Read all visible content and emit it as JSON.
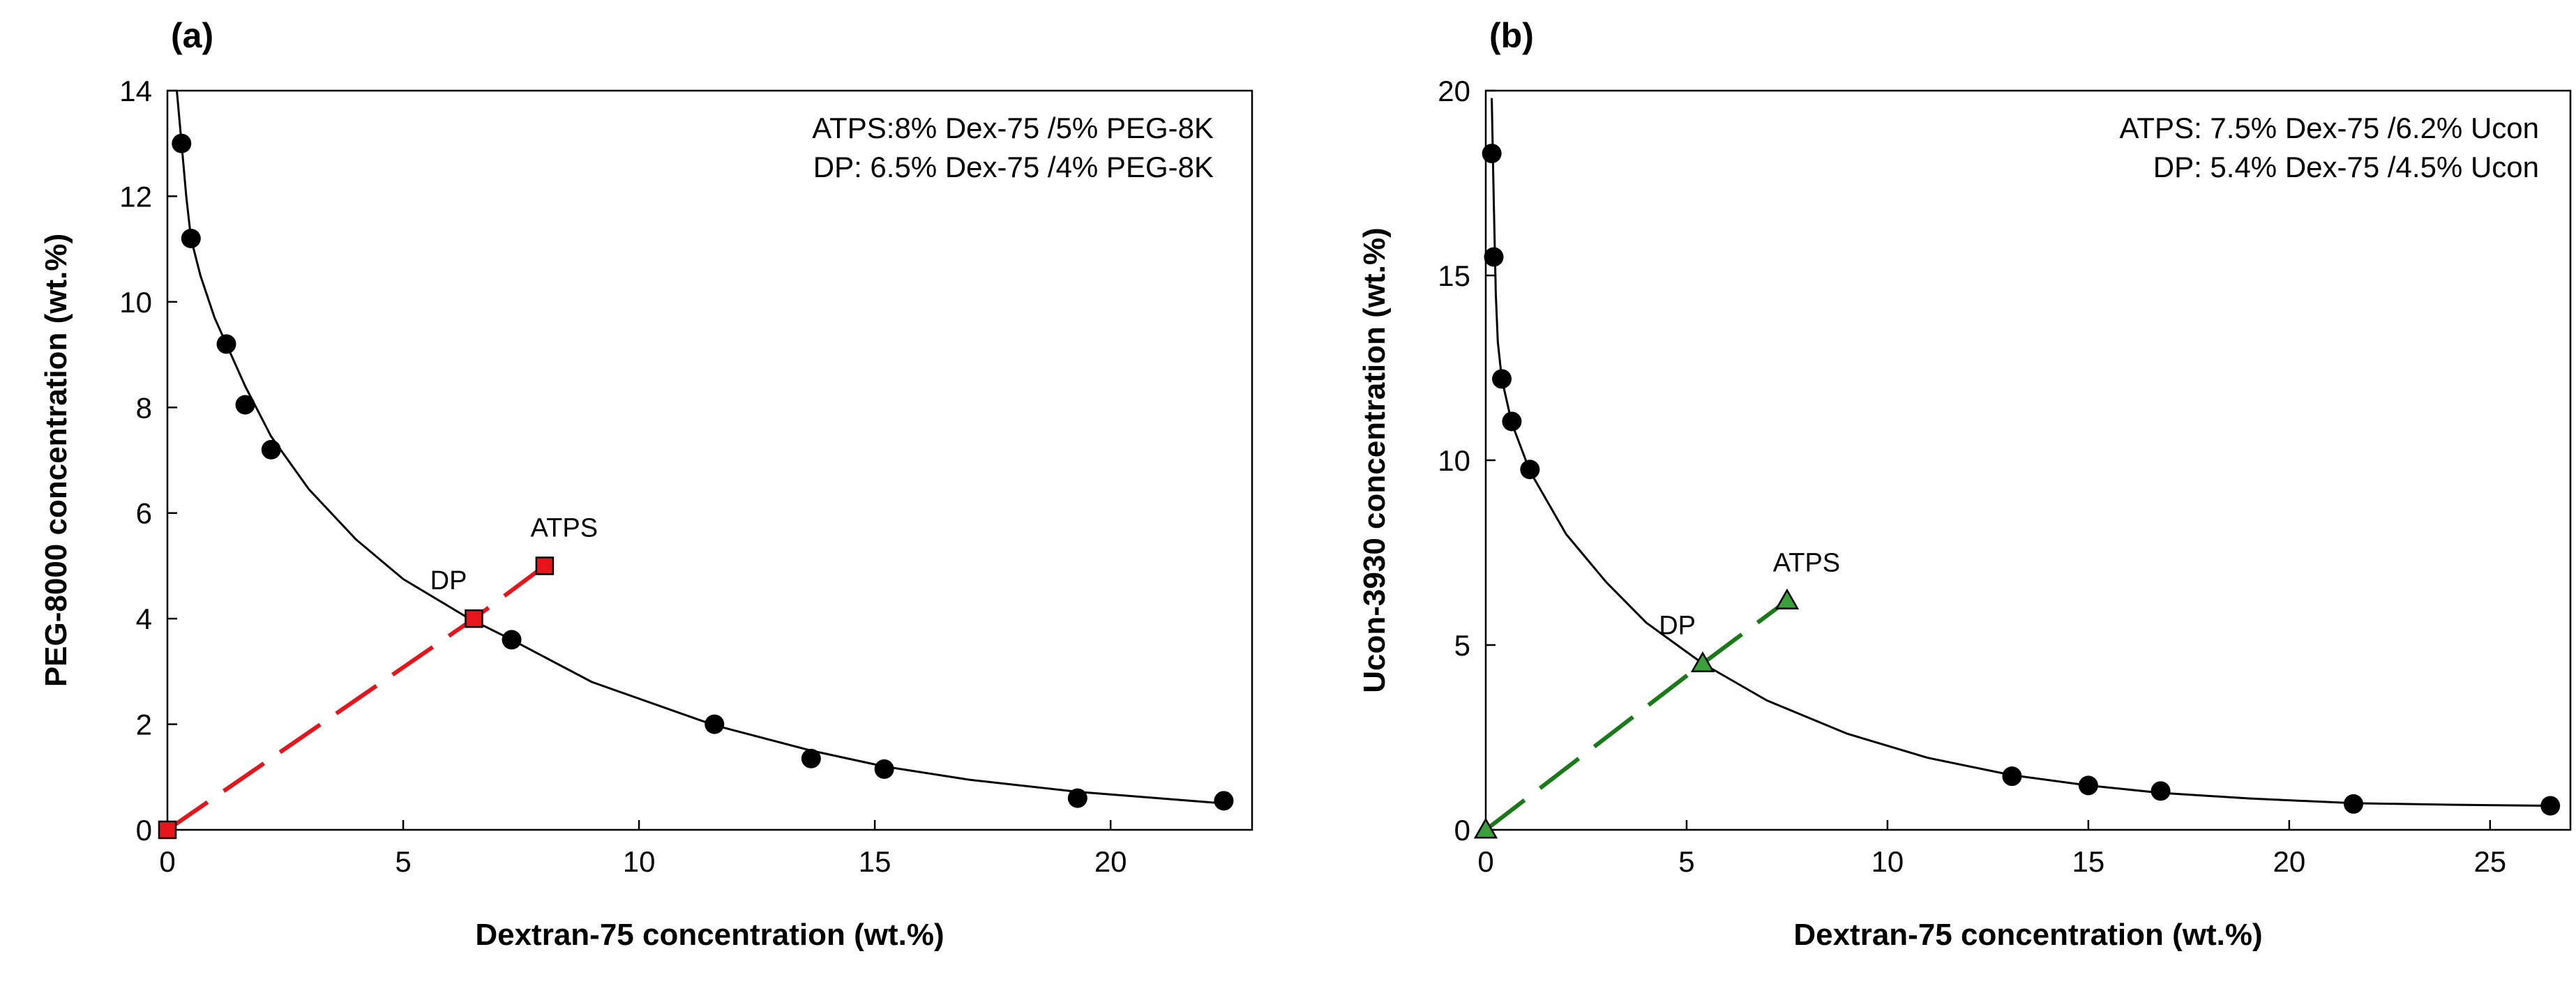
{
  "chart_data": [
    {
      "type": "scatter",
      "panel_label": "(a)",
      "xlabel": "Dextran-75 concentration (wt.%)",
      "ylabel": "PEG-8000 concentration (wt.%)",
      "xlim": [
        0,
        23
      ],
      "ylim": [
        0,
        14
      ],
      "xticks": [
        0,
        5,
        10,
        15,
        20
      ],
      "yticks": [
        0,
        2,
        4,
        6,
        8,
        10,
        12,
        14
      ],
      "annotations": [
        "ATPS:8% Dex-75 /5% PEG-8K",
        "DP: 6.5% Dex-75 /4% PEG-8K"
      ],
      "binodal_points": {
        "x": [
          0.3,
          0.5,
          1.25,
          1.65,
          2.2,
          7.3,
          11.6,
          13.65,
          15.2,
          19.3,
          22.4
        ],
        "y": [
          13.0,
          11.2,
          9.2,
          8.05,
          7.2,
          3.6,
          2.0,
          1.35,
          1.15,
          0.6,
          0.55
        ]
      },
      "binodal_curve": {
        "x": [
          0.2,
          0.25,
          0.3,
          0.4,
          0.5,
          0.7,
          1.0,
          1.25,
          1.65,
          2.2,
          3.0,
          4.0,
          5.0,
          6.4,
          7.3,
          9.0,
          11.6,
          13.65,
          15.2,
          17.0,
          19.3,
          21.0,
          22.4
        ],
        "y": [
          14.0,
          13.5,
          13.0,
          12.0,
          11.2,
          10.5,
          9.7,
          9.2,
          8.4,
          7.45,
          6.45,
          5.5,
          4.75,
          4.0,
          3.6,
          2.8,
          1.98,
          1.5,
          1.2,
          0.95,
          0.72,
          0.6,
          0.5
        ]
      },
      "tie_line": {
        "x": [
          0,
          6.5,
          8
        ],
        "y": [
          0,
          4,
          5
        ],
        "color": "#e8141b"
      },
      "marker_color": "#e8141b",
      "labeled_points": [
        {
          "label": "DP",
          "x": 6.5,
          "y": 4
        },
        {
          "label": "ATPS",
          "x": 8,
          "y": 5
        }
      ]
    },
    {
      "type": "scatter",
      "panel_label": "(b)",
      "xlabel": "Dextran-75 concentration (wt.%)",
      "ylabel": "Ucon-3930 concentration (wt.%)",
      "xlim": [
        0,
        27
      ],
      "ylim": [
        0,
        20
      ],
      "xticks": [
        0,
        5,
        10,
        15,
        20,
        25
      ],
      "yticks": [
        0,
        5,
        10,
        15,
        20
      ],
      "annotations": [
        "ATPS: 7.5% Dex-75 /6.2% Ucon",
        "DP: 5.4% Dex-75 /4.5% Ucon"
      ],
      "binodal_points": {
        "x": [
          0.15,
          0.2,
          0.4,
          0.65,
          1.1,
          13.1,
          15.0,
          16.8,
          21.6,
          26.5
        ],
        "y": [
          18.3,
          15.5,
          12.2,
          11.05,
          9.75,
          1.45,
          1.2,
          1.05,
          0.7,
          0.65
        ]
      },
      "binodal_curve": {
        "x": [
          0.15,
          0.2,
          0.25,
          0.3,
          0.4,
          0.65,
          1.1,
          2.0,
          3.0,
          4.0,
          5.4,
          7.0,
          9.0,
          11.0,
          13.1,
          15.0,
          16.8,
          19.0,
          21.6,
          24.0,
          26.5
        ],
        "y": [
          19.8,
          17.0,
          14.5,
          13.2,
          12.2,
          11.0,
          9.7,
          8.0,
          6.7,
          5.6,
          4.5,
          3.5,
          2.6,
          1.95,
          1.48,
          1.2,
          1.0,
          0.85,
          0.72,
          0.68,
          0.65
        ]
      },
      "tie_line": {
        "x": [
          0,
          5.4,
          7.5
        ],
        "y": [
          0,
          4.5,
          6.2
        ],
        "color": "#1a7a1a"
      },
      "marker_color": "#3aa03a",
      "labeled_points": [
        {
          "label": "DP",
          "x": 5.4,
          "y": 4.5
        },
        {
          "label": "ATPS",
          "x": 7.5,
          "y": 6.2
        }
      ]
    }
  ]
}
